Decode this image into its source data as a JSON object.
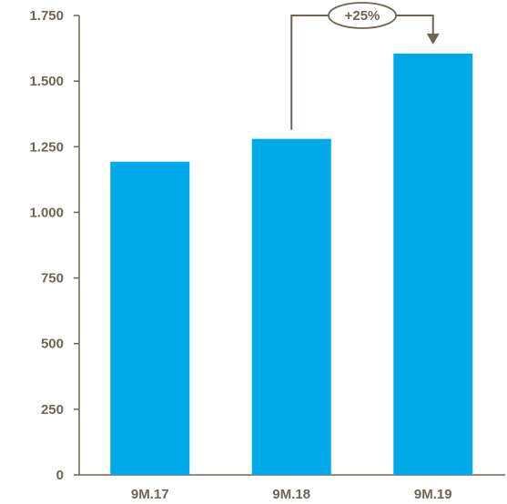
{
  "chart_data": {
    "type": "bar",
    "categories": [
      "9M.17",
      "9M.18",
      "9M.19"
    ],
    "values": [
      1193,
      1280,
      1605
    ],
    "ylim": [
      0,
      1750
    ],
    "yticks": [
      0,
      250,
      500,
      750,
      1000,
      1250,
      1500,
      1750
    ],
    "ytick_labels": [
      "0",
      "250",
      "500",
      "750",
      "1.000",
      "1.250",
      "1.500",
      "1.750"
    ],
    "title": "",
    "xlabel": "",
    "ylabel": "",
    "grid": false,
    "annotation": {
      "text": "+25%",
      "from": "9M.18",
      "to": "9M.19"
    }
  },
  "colors": {
    "bar": "#00a9e8",
    "axis": "#6e6552",
    "text": "#6e6552",
    "annotation": "#6e6552"
  }
}
